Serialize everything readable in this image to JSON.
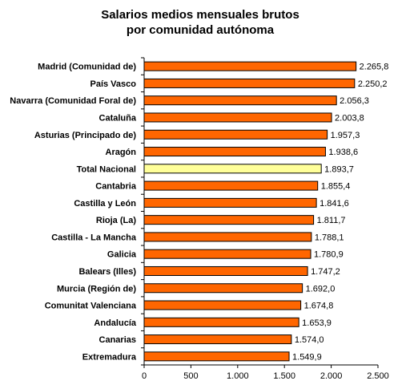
{
  "chart_data": {
    "type": "bar",
    "orientation": "horizontal",
    "title": [
      "Salarios medios mensuales brutos",
      "por comunidad autónoma"
    ],
    "categories": [
      "Madrid (Comunidad de)",
      "País Vasco",
      "Navarra (Comunidad Foral de)",
      "Cataluña",
      "Asturias (Principado de)",
      "Aragón",
      "Total Nacional",
      "Cantabria",
      "Castilla y León",
      "Rioja (La)",
      "Castilla - La Mancha",
      "Galicia",
      "Balears (Illes)",
      "Murcia (Región de)",
      "Comunitat Valenciana",
      "Andalucía",
      "Canarias",
      "Extremadura"
    ],
    "values": [
      2265.8,
      2250.2,
      2056.3,
      2003.8,
      1957.3,
      1938.6,
      1893.7,
      1855.4,
      1841.6,
      1811.7,
      1788.1,
      1780.9,
      1747.2,
      1692.0,
      1674.8,
      1653.9,
      1574.0,
      1549.9
    ],
    "value_labels": [
      "2.265,8",
      "2.250,2",
      "2.056,3",
      "2.003,8",
      "1.957,3",
      "1.938,6",
      "1.893,7",
      "1.855,4",
      "1.841,6",
      "1.811,7",
      "1.788,1",
      "1.780,9",
      "1.747,2",
      "1.692,0",
      "1.674,8",
      "1.653,9",
      "1.574,0",
      "1.549,9"
    ],
    "highlight_category": "Total Nacional",
    "xlim": [
      0,
      2500
    ],
    "xticks": [
      0,
      500,
      1000,
      1500,
      2000,
      2500
    ],
    "xtick_labels": [
      "0",
      "500",
      "1.000",
      "1.500",
      "2.000",
      "2.500"
    ],
    "grid": false,
    "legend": false,
    "colors": {
      "bar": "#ff6600",
      "highlight": "#ffff99",
      "outline": "#000000"
    }
  }
}
